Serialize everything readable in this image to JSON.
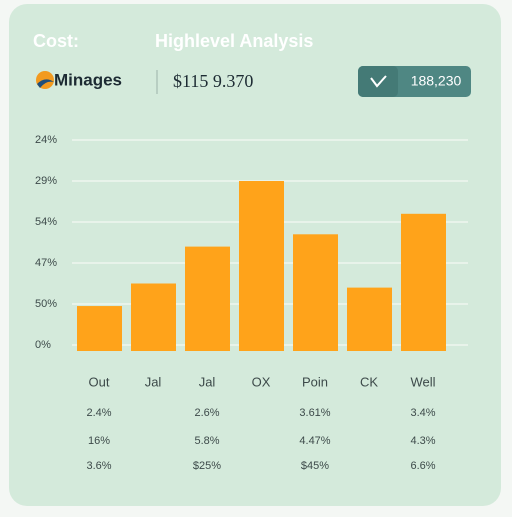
{
  "header": {
    "left": "Cost:",
    "title": "Highlevel Analysis"
  },
  "brand": {
    "name": "Minages",
    "amount": "$115 9.370",
    "button": "188,230"
  },
  "chart_data": {
    "type": "bar",
    "categories": [
      "Out",
      "Jal",
      "Jal",
      "OX",
      "Poin",
      "CK",
      "Well"
    ],
    "values": [
      0.95,
      1.5,
      2.4,
      4.0,
      2.7,
      1.4,
      3.2
    ],
    "color": "#ffa31a",
    "ylim": [
      0,
      5
    ],
    "yticks": [
      {
        "value": 0,
        "label": "0%"
      },
      {
        "value": 1,
        "label": "50%"
      },
      {
        "value": 2,
        "label": "47%"
      },
      {
        "value": 3,
        "label": "54%"
      },
      {
        "value": 4,
        "label": "29%"
      },
      {
        "value": 5,
        "label": "24%"
      }
    ],
    "grid": true
  },
  "table": {
    "rows": [
      [
        "2.4%",
        "2.6%",
        "3.61%",
        "3.4%"
      ],
      [
        "16%",
        "5.8%",
        "4.47%",
        "4.3%"
      ],
      [
        "3.6%",
        "$25%",
        "$45%",
        "6.6%"
      ]
    ]
  }
}
